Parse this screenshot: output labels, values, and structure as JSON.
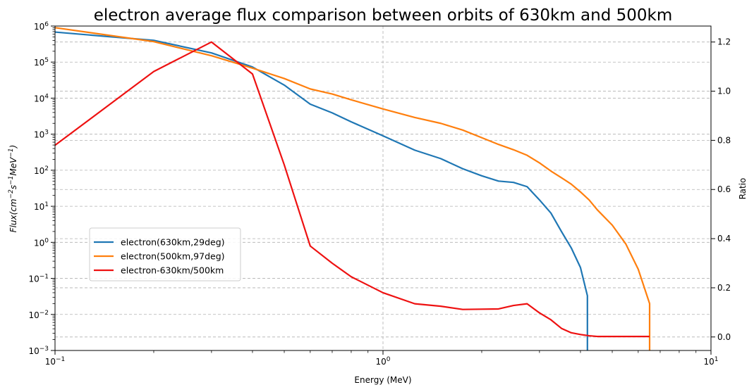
{
  "chart_data": {
    "type": "line",
    "title": "electron average flux comparison between orbits of 630km and 500km",
    "xlabel": "Energy (MeV)",
    "ylabel_left": "Flux(cm^{-2}s^{-1}MeV^{-1})",
    "ylabel_left_parts": {
      "base": "Flux(cm",
      "s": "s",
      "mev": "MeV",
      "close": ")",
      "exp2": "−2",
      "exp1": "−1"
    },
    "ylabel_right": "Ratio",
    "xscale": "log",
    "xlim": [
      0.1,
      10
    ],
    "x_ticks": [
      {
        "value": 0.1,
        "base": "10",
        "exp": "−1"
      },
      {
        "value": 1,
        "base": "10",
        "exp": "0"
      },
      {
        "value": 10,
        "base": "10",
        "exp": "1"
      }
    ],
    "yscale_left": "log",
    "ylim_left": [
      0.001,
      1000000
    ],
    "y_ticks_left": [
      {
        "value": 0.001,
        "base": "10",
        "exp": "−3"
      },
      {
        "value": 0.01,
        "base": "10",
        "exp": "−2"
      },
      {
        "value": 0.1,
        "base": "10",
        "exp": "−1"
      },
      {
        "value": 1,
        "base": "10",
        "exp": "0"
      },
      {
        "value": 10,
        "base": "10",
        "exp": "1"
      },
      {
        "value": 100,
        "base": "10",
        "exp": "2"
      },
      {
        "value": 1000,
        "base": "10",
        "exp": "3"
      },
      {
        "value": 10000,
        "base": "10",
        "exp": "4"
      },
      {
        "value": 100000,
        "base": "10",
        "exp": "5"
      },
      {
        "value": 1000000,
        "base": "10",
        "exp": "6"
      }
    ],
    "ylim_right": [
      -0.055,
      1.265
    ],
    "y_ticks_right": [
      "0.0",
      "0.2",
      "0.4",
      "0.6",
      "0.8",
      "1.0",
      "1.2"
    ],
    "grid": true,
    "legend_position": "center-left",
    "series": [
      {
        "name": "electron(630km,29deg)",
        "axis": "left",
        "color": "#1f77b4",
        "x": [
          0.1,
          0.2,
          0.3,
          0.4,
          0.5,
          0.6,
          0.7,
          0.8,
          1.0,
          1.25,
          1.5,
          1.75,
          2.0,
          2.25,
          2.5,
          2.75,
          3.0,
          3.25,
          3.5,
          3.75,
          4.0,
          4.2,
          4.2
        ],
        "y": [
          680000,
          400000,
          180000,
          73000,
          23000,
          6800,
          3900,
          2200,
          900,
          360,
          210,
          110,
          70,
          50,
          46,
          35,
          15,
          6.5,
          2,
          0.7,
          0.2,
          0.033,
          0.001
        ]
      },
      {
        "name": "electron(500km,97deg)",
        "axis": "left",
        "color": "#ff7f0e",
        "x": [
          0.1,
          0.2,
          0.3,
          0.4,
          0.5,
          0.6,
          0.7,
          0.8,
          1.0,
          1.25,
          1.5,
          1.75,
          2.0,
          2.25,
          2.5,
          2.75,
          3.0,
          3.25,
          3.5,
          3.75,
          4.0,
          4.25,
          4.5,
          5.0,
          5.5,
          6.0,
          6.5,
          6.5
        ],
        "y": [
          900000,
          370000,
          150000,
          68000,
          35000,
          18000,
          13000,
          9000,
          5000,
          2900,
          2000,
          1300,
          800,
          520,
          370,
          260,
          160,
          95,
          62,
          41,
          25,
          15,
          8,
          3,
          0.9,
          0.18,
          0.02,
          0.001
        ]
      },
      {
        "name": "electron-630km/500km",
        "axis": "right",
        "color": "#ee1111",
        "x": [
          0.1,
          0.2,
          0.3,
          0.4,
          0.5,
          0.6,
          0.7,
          0.8,
          1.0,
          1.25,
          1.5,
          1.75,
          2.0,
          2.25,
          2.5,
          2.75,
          3.0,
          3.25,
          3.5,
          3.75,
          4.0,
          4.25,
          4.5,
          5.0,
          5.5,
          6.0,
          6.5
        ],
        "y": [
          0.78,
          1.08,
          1.2,
          1.07,
          0.7,
          0.37,
          0.3,
          0.245,
          0.18,
          0.135,
          0.125,
          0.112,
          0.113,
          0.114,
          0.128,
          0.135,
          0.098,
          0.07,
          0.035,
          0.017,
          0.01,
          0.005,
          0.002,
          0.002,
          0.002,
          0.002,
          0.002
        ]
      }
    ]
  }
}
